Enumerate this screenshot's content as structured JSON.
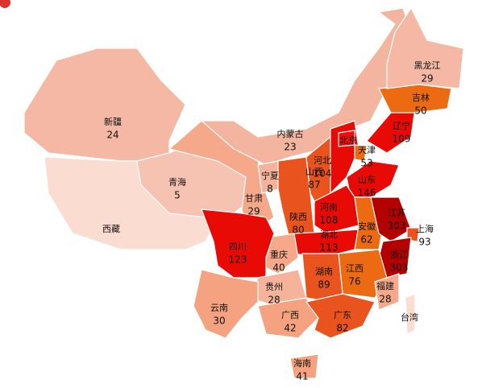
{
  "regions": [
    {
      "name": "新疆",
      "value": 24,
      "color": "#f4b8a4"
    },
    {
      "name": "西藏",
      "color": "#fbdcd1"
    },
    {
      "name": "青海",
      "value": 5,
      "color": "#f6c3b2"
    },
    {
      "name": "甘肃",
      "value": 29,
      "color": "#f5a88a"
    },
    {
      "name": "内蒙古",
      "value": 23,
      "color": "#f4b5a0"
    },
    {
      "name": "宁夏",
      "value": 8,
      "color": "#f5b39b"
    },
    {
      "name": "陕西",
      "value": 80,
      "color": "#e8531e"
    },
    {
      "name": "山西",
      "value": 87,
      "color": "#e8531e"
    },
    {
      "name": "河北",
      "value": 104,
      "color": "#e80a05"
    },
    {
      "name": "北京",
      "color": "#f20d0d"
    },
    {
      "name": "天津",
      "value": 53,
      "color": "#ec6a12"
    },
    {
      "name": "山东",
      "value": 146,
      "color": "#e80a05"
    },
    {
      "name": "河南",
      "value": 108,
      "color": "#e80a05"
    },
    {
      "name": "湖北",
      "value": 113,
      "color": "#e80a05"
    },
    {
      "name": "安徽",
      "value": 62,
      "color": "#ec6a12"
    },
    {
      "name": "江苏",
      "value": 303,
      "color": "#b30000"
    },
    {
      "name": "上海",
      "value": 93,
      "color": "#e8531e"
    },
    {
      "name": "浙江",
      "value": 303,
      "color": "#b30000"
    },
    {
      "name": "江西",
      "value": 76,
      "color": "#ec6a12"
    },
    {
      "name": "福建",
      "value": 28,
      "color": "#f5a88a"
    },
    {
      "name": "湖南",
      "value": 89,
      "color": "#e8531e"
    },
    {
      "name": "重庆",
      "value": 40,
      "color": "#f5a88a"
    },
    {
      "name": "四川",
      "value": 123,
      "color": "#e80a05"
    },
    {
      "name": "贵州",
      "value": 28,
      "color": "#f5b39b"
    },
    {
      "name": "云南",
      "value": 30,
      "color": "#f4a27f"
    },
    {
      "name": "广西",
      "value": 42,
      "color": "#f4a27f"
    },
    {
      "name": "广东",
      "value": 82,
      "color": "#e8531e"
    },
    {
      "name": "海南",
      "value": 41,
      "color": "#f4a27f"
    },
    {
      "name": "台湾",
      "color": "#fbdcd1"
    },
    {
      "name": "辽宁",
      "value": 109,
      "color": "#e80a05"
    },
    {
      "name": "吉林",
      "value": 50,
      "color": "#ec6a12"
    },
    {
      "name": "黑龙江",
      "value": 29,
      "color": "#f4b8a4"
    }
  ]
}
